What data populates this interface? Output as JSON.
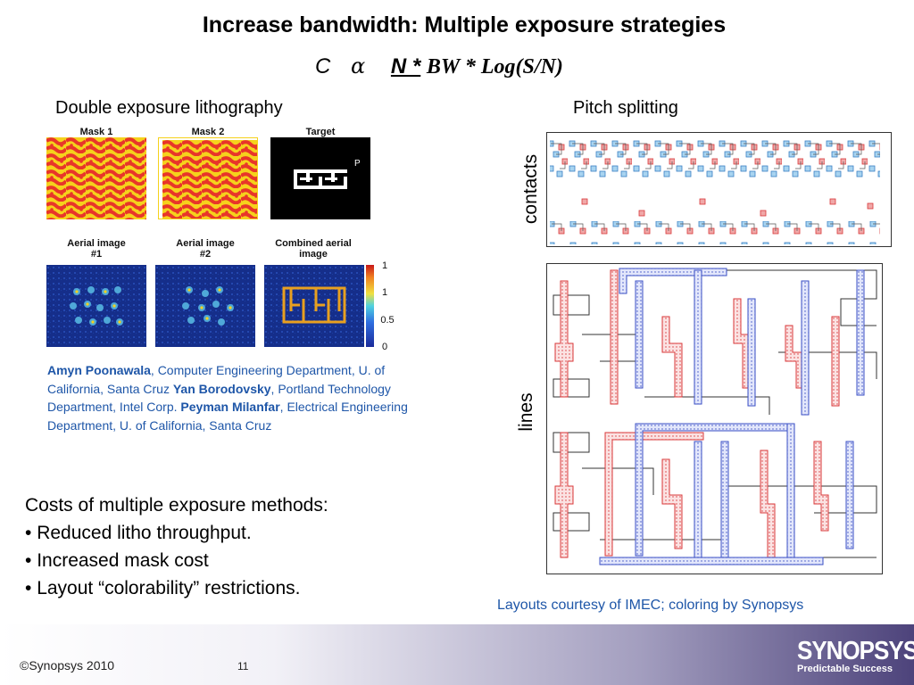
{
  "title": "Increase bandwidth:  Multiple exposure strategies",
  "formula": {
    "c": "C",
    "alpha": "α",
    "n": "N *",
    "rest": "BW * Log(S/N)"
  },
  "left_section": {
    "heading": "Double exposure lithography",
    "images": {
      "mask1": "Mask 1",
      "mask2": "Mask 2",
      "target": "Target",
      "target_letter": "P",
      "aerial1": "Aerial image #1",
      "aerial2": "Aerial image #2",
      "combined": "Combined aerial image"
    },
    "colorbar_ticks": [
      "1",
      "1",
      "0.5",
      "0"
    ]
  },
  "credit": {
    "author1": "Amyn Poonawala",
    "affil1": ", Computer Engineering Department, U. of California, Santa Cruz ",
    "author2": "Yan Borodovsky",
    "affil2": ", Portland Technology Department, Intel Corp. ",
    "author3": "Peyman Milanfar",
    "affil3": ", Electrical Engineering Department, U. of California, Santa Cruz"
  },
  "costs": {
    "heading": "Costs of multiple exposure methods:",
    "items": [
      "Reduced litho throughput.",
      "Increased mask cost",
      "Layout “colorability” restrictions."
    ]
  },
  "right_section": {
    "heading": "Pitch splitting",
    "contacts_label": "contacts",
    "lines_label": "lines",
    "courtesy": "Layouts courtesy of IMEC; coloring by Synopsys"
  },
  "footer": {
    "copyright": "©Synopsys 2010",
    "page": "11",
    "brand": "SYNOPSYS",
    "tagline": "Predictable Success"
  },
  "colors": {
    "accent_blue": "#1e56a8",
    "mask_red": "#e8352a",
    "mask_yellow": "#f5d21c",
    "layout_red": "#d9383a",
    "layout_blue": "#3a4fc4"
  }
}
